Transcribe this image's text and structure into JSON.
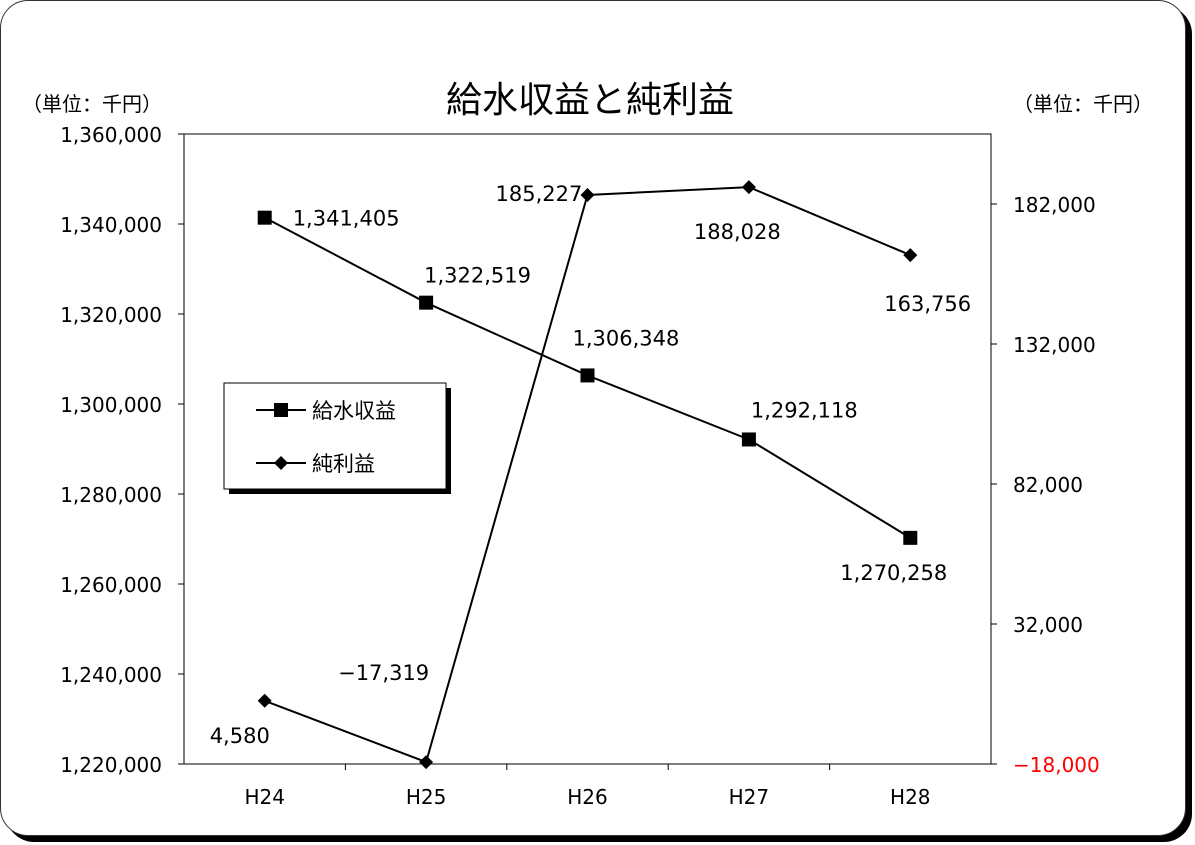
{
  "chart_data": {
    "type": "line",
    "title": "給水収益と純利益",
    "left_unit": "（単位：千円）",
    "right_unit": "（単位：千円）",
    "categories": [
      "H24",
      "H25",
      "H26",
      "H27",
      "H28"
    ],
    "y_left": {
      "range": [
        1220000,
        1360000
      ],
      "ticks": [
        1220000,
        1240000,
        1260000,
        1280000,
        1300000,
        1320000,
        1340000,
        1360000
      ],
      "tick_labels": [
        "1,220,000",
        "1,240,000",
        "1,260,000",
        "1,280,000",
        "1,300,000",
        "1,320,000",
        "1,340,000",
        "1,360,000"
      ]
    },
    "y_right": {
      "range": [
        -18000,
        207000
      ],
      "ticks": [
        -18000,
        32000,
        82000,
        132000,
        182000
      ],
      "tick_labels": [
        "−18,000",
        "32,000",
        "82,000",
        "132,000",
        "182,000"
      ],
      "negative_color": "#ff0000"
    },
    "series": [
      {
        "name": "給水収益",
        "axis": "left",
        "marker": "square",
        "values": [
          1341405,
          1322519,
          1306348,
          1292118,
          1270258
        ],
        "labels": [
          "1,341,405",
          "1,322,519",
          "1,306,348",
          "1,292,118",
          "1,270,258"
        ]
      },
      {
        "name": "純利益",
        "axis": "right",
        "marker": "diamond",
        "values": [
          4580,
          -17319,
          185227,
          188028,
          163756
        ],
        "labels": [
          "4,580",
          "−17,319",
          "185,227",
          "188,028",
          "163,756"
        ]
      }
    ],
    "grid": false,
    "legend_position": "middle-left"
  }
}
